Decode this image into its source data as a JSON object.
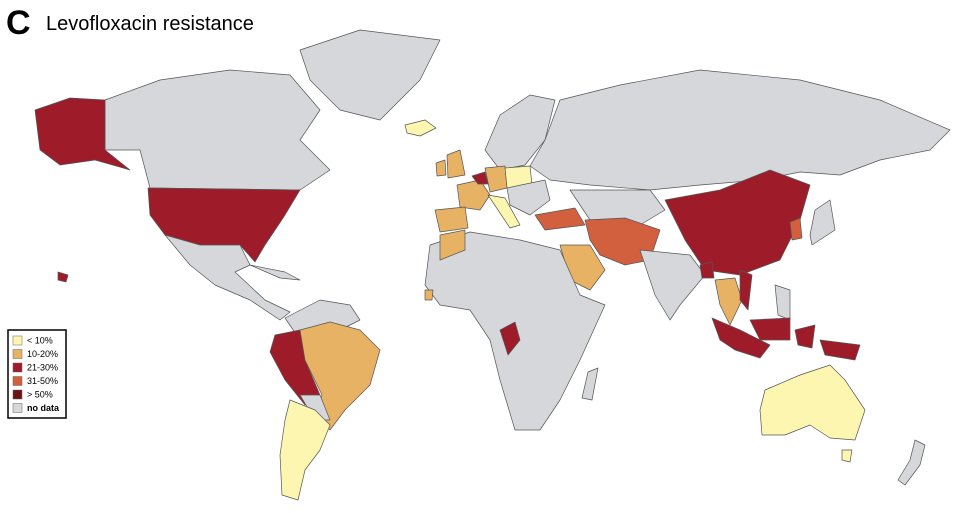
{
  "panel": "C",
  "title": "Levofloxacin resistance",
  "legend": [
    {
      "label": "< 10%",
      "color": "#fdf6b0"
    },
    {
      "label": "10-20%",
      "color": "#e8b264"
    },
    {
      "label": "21-30%",
      "color": "#9e1c2a"
    },
    {
      "label": "31-50%",
      "color": "#d2603f"
    },
    {
      "label": "> 50%",
      "color": "#6b1214"
    },
    {
      "label": "no data",
      "color": "#d5d7db"
    }
  ]
}
